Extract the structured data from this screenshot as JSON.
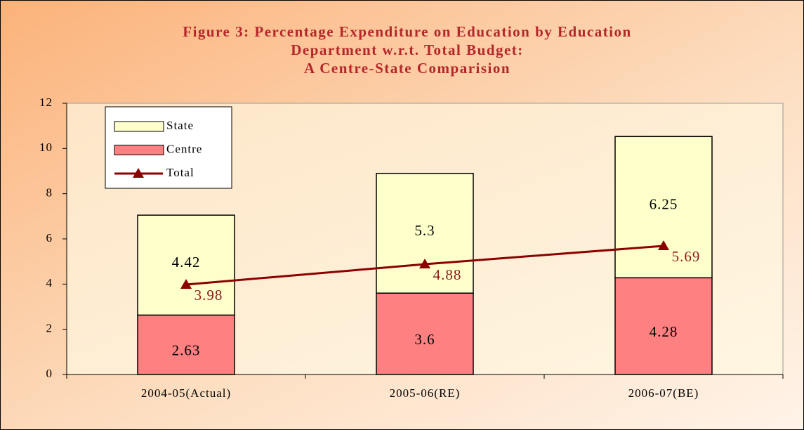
{
  "chart_data": {
    "type": "bar",
    "title": [
      "Figure 3: Percentage Expenditure on Education by Education",
      "Department w.r.t. Total Budget:",
      "A Centre-State Comparision"
    ],
    "categories": [
      "2004-05(Actual)",
      "2005-06(RE)",
      "2006-07(BE)"
    ],
    "stacked": true,
    "series": [
      {
        "name": "Centre",
        "color": "#ff8080",
        "values": [
          2.63,
          3.6,
          4.28
        ]
      },
      {
        "name": "State",
        "color": "#ffffcc",
        "values": [
          4.42,
          5.3,
          6.25
        ]
      },
      {
        "name": "Total",
        "type": "line",
        "color": "#8b0000",
        "values": [
          3.98,
          4.88,
          5.69
        ]
      }
    ],
    "legend_order": [
      1,
      0,
      2
    ],
    "ylim": [
      0,
      12
    ],
    "yticks": [
      0,
      2,
      4,
      6,
      8,
      10,
      12
    ]
  }
}
